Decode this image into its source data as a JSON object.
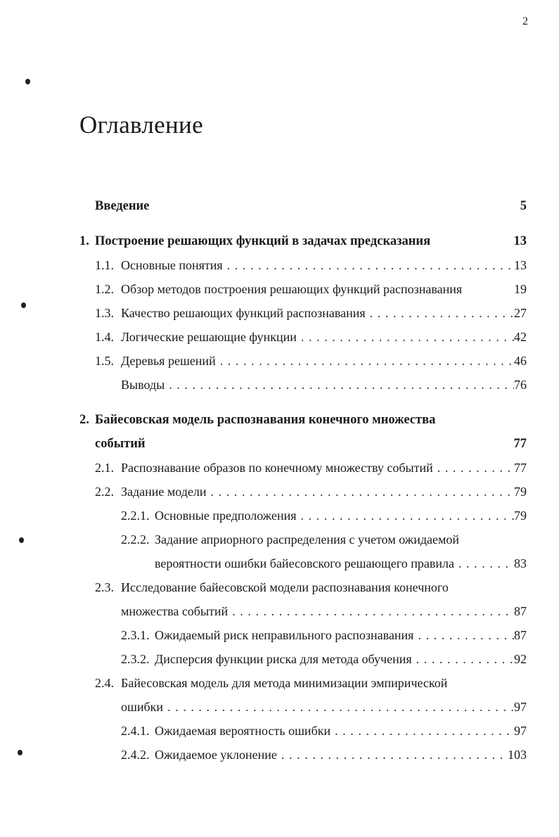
{
  "page_number": "2",
  "title": "Оглавление",
  "entries": [
    {
      "level": 0,
      "num": "",
      "text": "Введение",
      "page": "5",
      "bold": true,
      "dots": false
    },
    {
      "level": 1,
      "num": "1.",
      "text": "Построение решающих функций в задачах предсказания",
      "page": "13",
      "bold": true,
      "dots": false
    },
    {
      "level": 2,
      "num": "1.1.",
      "text": "Основные понятия",
      "page": "13",
      "dots": true
    },
    {
      "level": 2,
      "num": "1.2.",
      "text": "Обзор методов построения решающих функций распознавания",
      "page": "19",
      "dots": false
    },
    {
      "level": 2,
      "num": "1.3.",
      "text": "Качество решающих функций распознавания",
      "page": "27",
      "dots": true
    },
    {
      "level": 2,
      "num": "1.4.",
      "text": "Логические решающие функции",
      "page": "42",
      "dots": true
    },
    {
      "level": 2,
      "num": "1.5.",
      "text": "Деревья решений",
      "page": "46",
      "dots": true
    },
    {
      "level": 2,
      "num": "",
      "text": "Выводы",
      "page": "76",
      "dots": true
    },
    {
      "level": 1,
      "num": "2.",
      "text": "Байесовская модель распознавания конечного множества",
      "page": "",
      "bold": true,
      "dots": false,
      "gap": true
    },
    {
      "level": 1,
      "cont": true,
      "num": "",
      "text": "событий",
      "page": "77",
      "bold": true,
      "dots": false
    },
    {
      "level": 2,
      "num": "2.1.",
      "text": "Распознавание образов по конечному множеству событий",
      "page": "77",
      "dots": true
    },
    {
      "level": 2,
      "num": "2.2.",
      "text": "Задание модели",
      "page": "79",
      "dots": true
    },
    {
      "level": 3,
      "num": "2.2.1.",
      "text": "Основные предположения",
      "page": "79",
      "dots": true
    },
    {
      "level": 3,
      "num": "2.2.2.",
      "text": "Задание априорного распределения с учетом ожидаемой",
      "page": "",
      "dots": false
    },
    {
      "level": 3,
      "cont": true,
      "num": "",
      "text": "вероятности ошибки байесовского решающего правила",
      "page": "83",
      "dots": true
    },
    {
      "level": 2,
      "num": "2.3.",
      "text": "Исследование байесовской модели распознавания конечного",
      "page": "",
      "dots": false
    },
    {
      "level": 2,
      "cont": true,
      "num": "",
      "text": "множества событий",
      "page": "87",
      "dots": true
    },
    {
      "level": 3,
      "num": "2.3.1.",
      "text": "Ожидаемый риск неправильного распознавания",
      "page": "87",
      "dots": true
    },
    {
      "level": 3,
      "num": "2.3.2.",
      "text": "Дисперсия функции риска для метода обучения",
      "page": "92",
      "dots": true
    },
    {
      "level": 2,
      "num": "2.4.",
      "text": "Байесовская модель для метода минимизации эмпирической",
      "page": "",
      "dots": false
    },
    {
      "level": 2,
      "cont": true,
      "num": "",
      "text": "ошибки",
      "page": "97",
      "dots": true
    },
    {
      "level": 3,
      "num": "2.4.1.",
      "text": "Ожидаемая вероятность ошибки",
      "page": "97",
      "dots": true
    },
    {
      "level": 3,
      "num": "2.4.2.",
      "text": "Ожидаемое уклонение",
      "page": "103",
      "dots": true
    }
  ]
}
